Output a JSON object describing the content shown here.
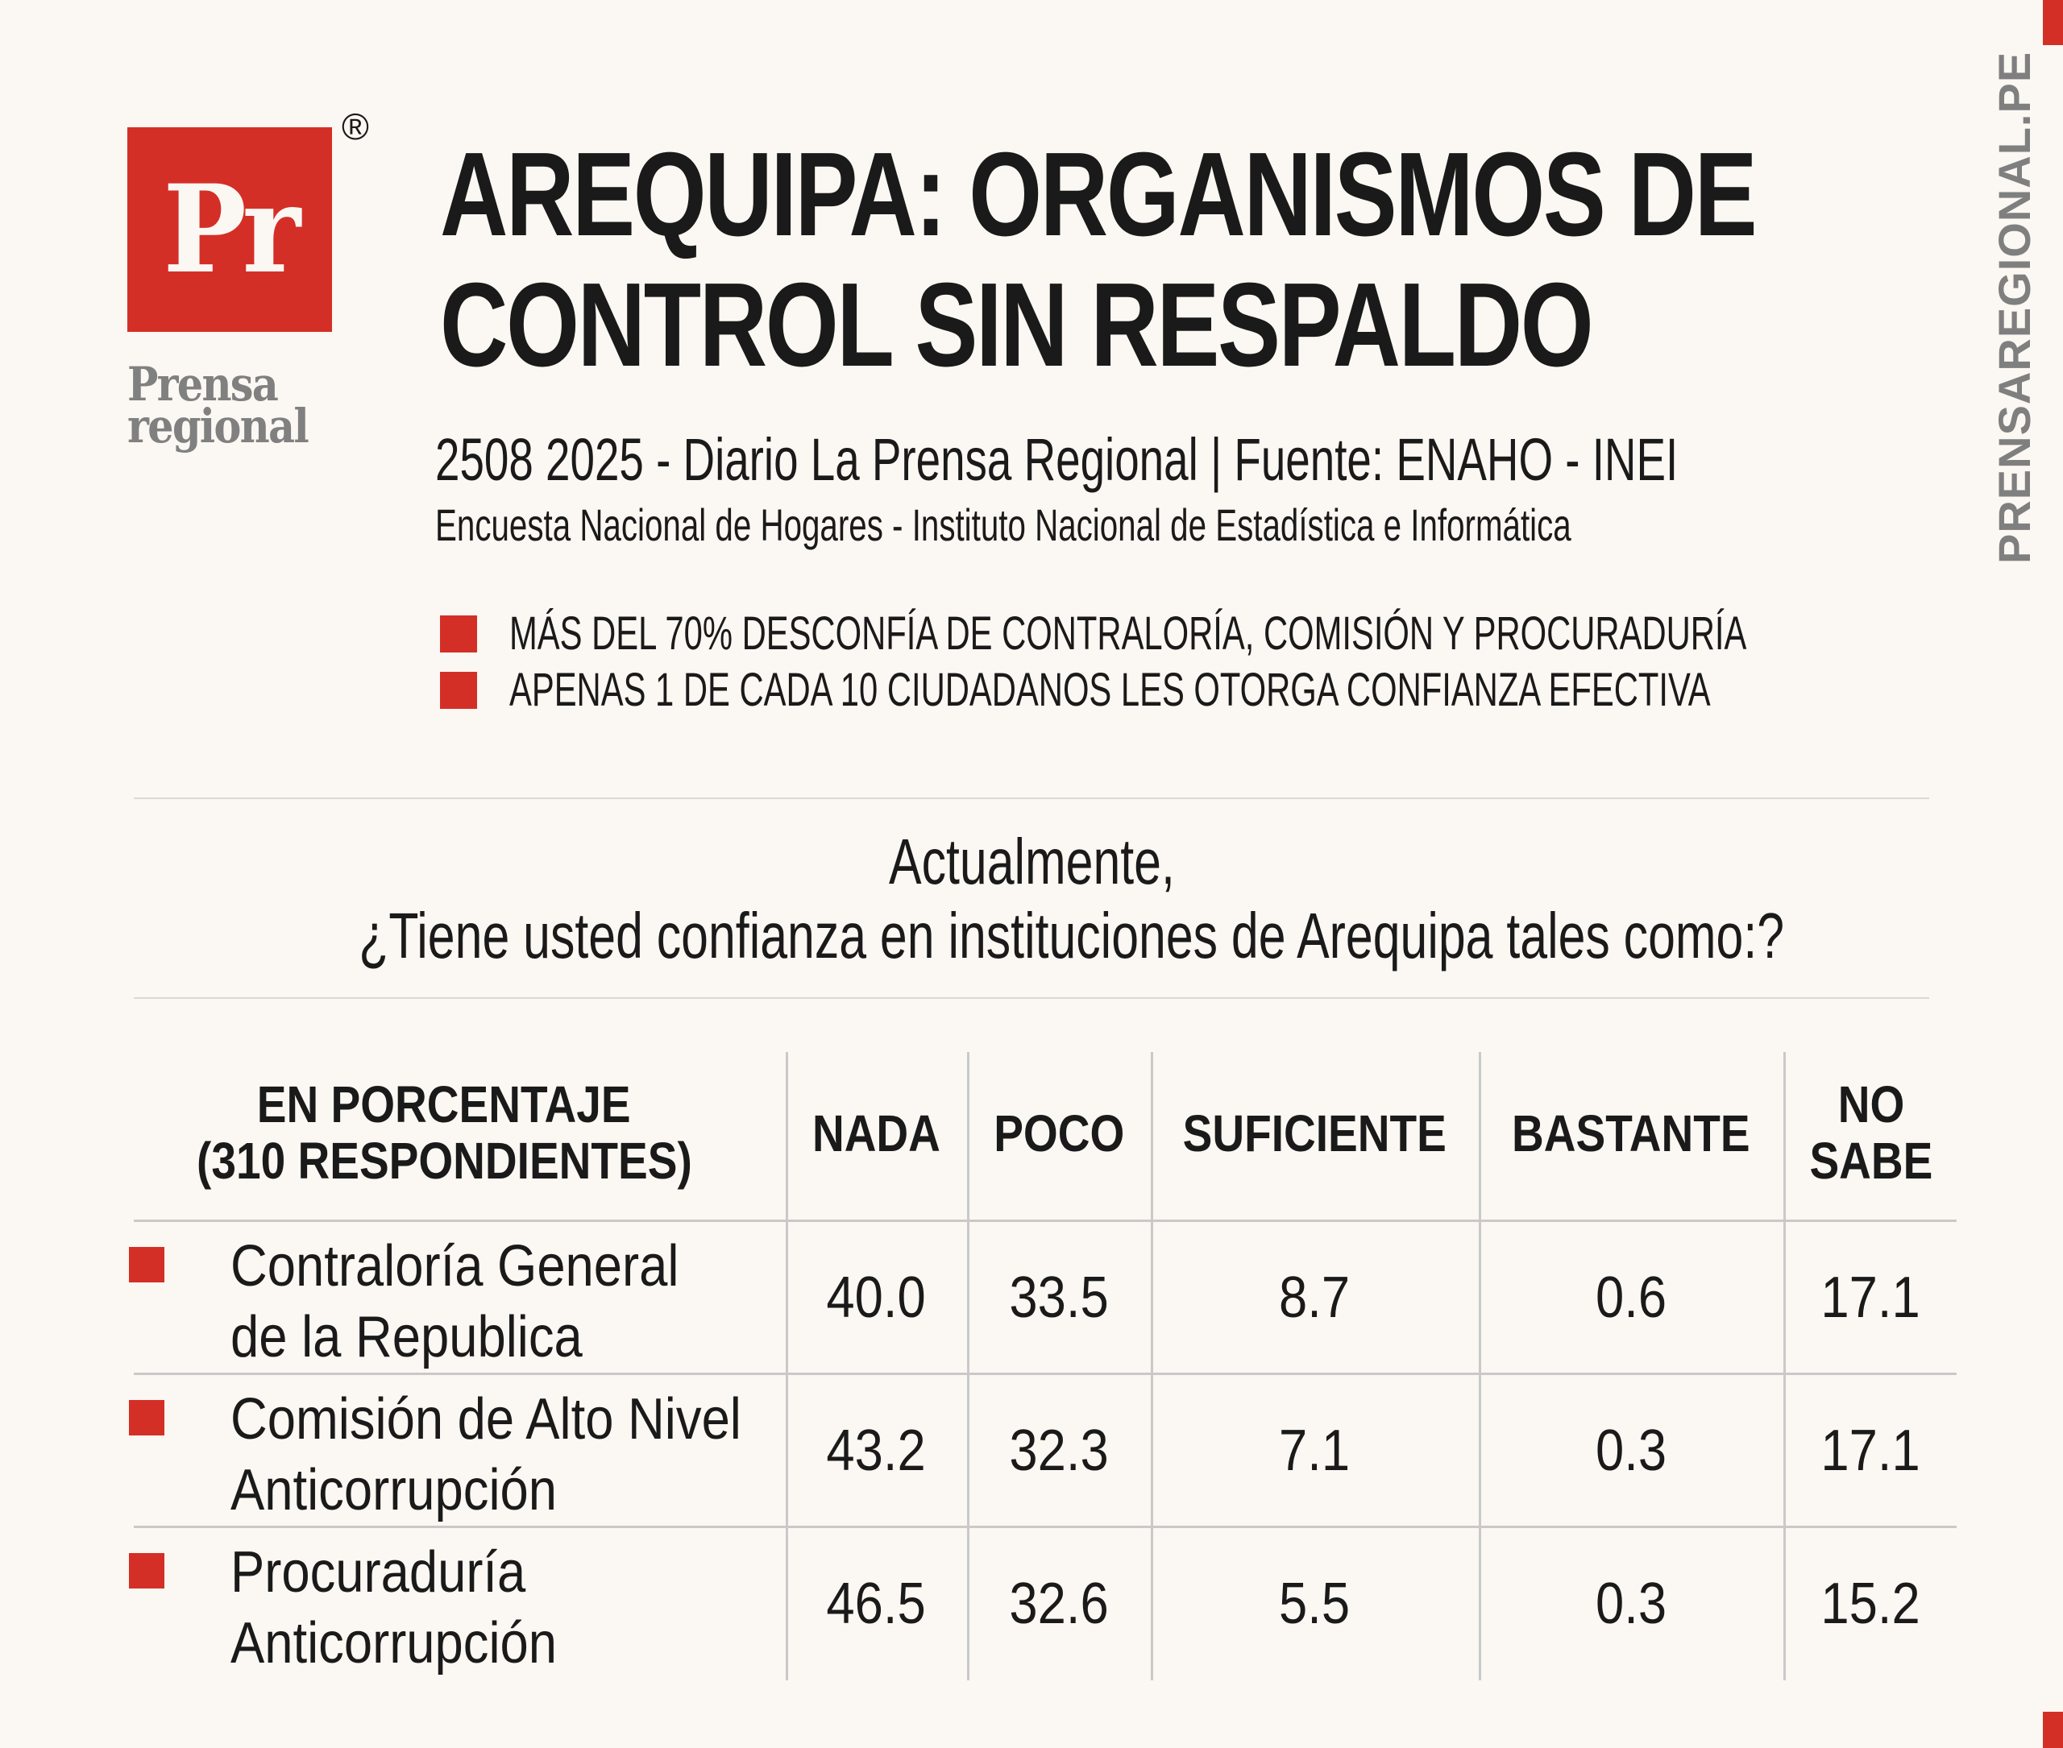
{
  "logo": {
    "mark": "Pr",
    "registered": "®",
    "word1": "Prensa",
    "word2": "regional",
    "brand_color": "#d42f27"
  },
  "header": {
    "title_line1": "AREQUIPA: ORGANISMOS DE",
    "title_line2": "CONTROL SIN RESPALDO",
    "subtitle": "2508 2025 - Diario La Prensa Regional | Fuente: ENAHO - INEI",
    "source_detail": "Encuesta Nacional de Hogares - Instituto Nacional de Estadística e Informática",
    "highlights": [
      "MÁS DEL 70% DESCONFÍA DE CONTRALORÍA, COMISIÓN Y PROCURADURÍA",
      "APENAS 1 DE CADA 10 CIUDADANOS LES OTORGA CONFIANZA EFECTIVA"
    ]
  },
  "side": {
    "website": "PRENSAREGIONAL.PE"
  },
  "question": {
    "line1": "Actualmente,",
    "line2": "¿Tiene usted confianza en instituciones de Arequipa tales como:?"
  },
  "chart_data": {
    "type": "table",
    "row_header": {
      "line1": "EN PORCENTAJE",
      "line2": "(310 RESPONDIENTES)"
    },
    "columns": [
      {
        "line1": "NADA",
        "line2": ""
      },
      {
        "line1": "POCO",
        "line2": ""
      },
      {
        "line1": "SUFICIENTE",
        "line2": ""
      },
      {
        "line1": "BASTANTE",
        "line2": ""
      },
      {
        "line1": "NO",
        "line2": "SABE"
      }
    ],
    "rows": [
      {
        "label_line1": "Contraloría General",
        "label_line2": "de la Republica",
        "values": [
          "40.0",
          "33.5",
          "8.7",
          "0.6",
          "17.1"
        ]
      },
      {
        "label_line1": "Comisión de Alto Nivel",
        "label_line2": "Anticorrupción",
        "values": [
          "43.2",
          "32.3",
          "7.1",
          "0.3",
          "17.1"
        ]
      },
      {
        "label_line1": "Procuraduría",
        "label_line2": " Anticorrupción",
        "values": [
          "46.5",
          "32.6",
          "5.5",
          "0.3",
          "15.2"
        ]
      }
    ],
    "accent_color": "#d42f27"
  }
}
